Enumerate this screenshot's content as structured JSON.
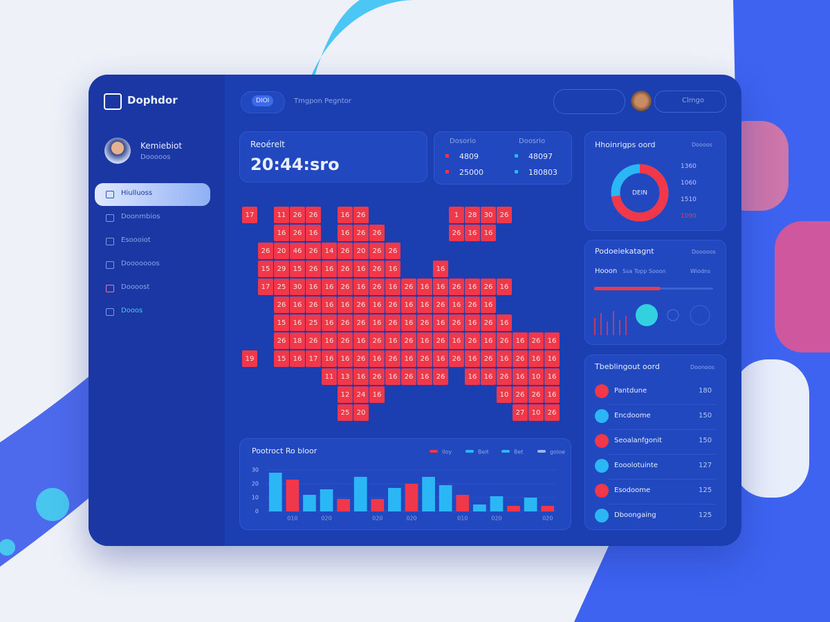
{
  "sidebar": {
    "logo": "Dophdor",
    "user": {
      "name": "Kemiebiot",
      "role": "Dooooos"
    },
    "nav": [
      "Hiulluoss",
      "Doonmbios",
      "Esoooiot",
      "Dooooooos",
      "Doooost",
      "Dooos"
    ]
  },
  "topbar": {
    "badge": "DIOI",
    "title": "Tmgpon Pegntor",
    "user": "Clmgo"
  },
  "clock": {
    "label": "Reoérelt",
    "time": "20:44:sro"
  },
  "stats": {
    "headers": [
      "Dosorio",
      "Doosrio"
    ],
    "rows": [
      [
        "4809",
        "48097"
      ],
      [
        "25000",
        "180803"
      ]
    ]
  },
  "map": {
    "rows": [
      [
        "17",
        null,
        "11",
        "26",
        "26",
        null,
        "16",
        "26",
        null,
        null,
        null,
        null,
        null,
        "1",
        "28",
        "30",
        "26",
        null,
        null,
        null
      ],
      [
        null,
        null,
        "16",
        "26",
        "16",
        null,
        "16",
        "26",
        "26",
        null,
        null,
        null,
        null,
        "26",
        "16",
        "16",
        null,
        null,
        null,
        null
      ],
      [
        null,
        "26",
        "20",
        "46",
        "26",
        "14",
        "26",
        "20",
        "26",
        "26",
        null,
        null,
        null,
        null,
        null,
        null,
        null,
        null,
        null,
        null
      ],
      [
        null,
        "15",
        "29",
        "15",
        "26",
        "16",
        "26",
        "16",
        "26",
        "16",
        null,
        null,
        "16",
        null,
        null,
        null,
        null,
        null,
        null,
        null
      ],
      [
        null,
        "17",
        "25",
        "30",
        "16",
        "16",
        "26",
        "16",
        "26",
        "16",
        "26",
        "16",
        "16",
        "26",
        "16",
        "26",
        "16",
        null,
        null,
        null
      ],
      [
        null,
        null,
        "26",
        "16",
        "26",
        "16",
        "16",
        "26",
        "16",
        "26",
        "16",
        "16",
        "26",
        "16",
        "26",
        "16",
        null,
        null,
        null,
        null
      ],
      [
        null,
        null,
        "15",
        "16",
        "25",
        "16",
        "26",
        "26",
        "16",
        "26",
        "16",
        "26",
        "16",
        "26",
        "16",
        "26",
        "16",
        null,
        null,
        null
      ],
      [
        null,
        null,
        "26",
        "18",
        "26",
        "16",
        "26",
        "16",
        "26",
        "16",
        "26",
        "16",
        "26",
        "16",
        "26",
        "16",
        "26",
        "16",
        "26",
        "16"
      ],
      [
        "19",
        null,
        "15",
        "16",
        "17",
        "16",
        "16",
        "26",
        "16",
        "26",
        "16",
        "26",
        "16",
        "26",
        "16",
        "26",
        "16",
        "26",
        "16",
        "16"
      ],
      [
        null,
        null,
        null,
        null,
        null,
        "11",
        "13",
        "16",
        "26",
        "16",
        "26",
        "16",
        "26",
        null,
        "16",
        "16",
        "26",
        "16",
        "10",
        "16"
      ],
      [
        null,
        null,
        null,
        null,
        null,
        null,
        "12",
        "24",
        "16",
        null,
        null,
        null,
        null,
        null,
        null,
        null,
        "10",
        "26",
        "26",
        "16"
      ],
      [
        null,
        null,
        null,
        null,
        null,
        null,
        "25",
        "20",
        null,
        null,
        null,
        null,
        null,
        null,
        null,
        null,
        null,
        "27",
        "10",
        "26"
      ]
    ]
  },
  "bar_chart": {
    "title": "Pootroct Ro bloor",
    "legend": [
      {
        "name": "lloy",
        "color": "#f0384a"
      },
      {
        "name": "Beit",
        "color": "#2bb6f5"
      },
      {
        "name": "Bet",
        "color": "#2bb6f5"
      },
      {
        "name": "goloe",
        "color": "#9fb4ee"
      }
    ],
    "ylim": [
      0,
      35
    ],
    "yticks": [
      0,
      10,
      20,
      30
    ],
    "categories": [
      null,
      "010",
      null,
      "020",
      null,
      null,
      "020",
      null,
      "020",
      null,
      null,
      "010",
      null,
      "020",
      null,
      null,
      "020"
    ],
    "values": [
      28,
      23,
      12,
      16,
      9,
      25,
      9,
      17,
      20,
      25,
      19,
      12,
      5,
      11,
      4,
      10,
      4
    ],
    "colors": [
      "#2bb6f5",
      "#f0384a",
      "#2bb6f5",
      "#2bb6f5",
      "#f0384a",
      "#2bb6f5",
      "#f0384a",
      "#2bb6f5",
      "#f0384a",
      "#2bb6f5",
      "#2bb6f5",
      "#f0384a",
      "#2bb6f5",
      "#2bb6f5",
      "#f0384a",
      "#2bb6f5",
      "#f0384a"
    ]
  },
  "donut_card": {
    "title": "Hhoinrigps oord",
    "subtitle": "Doooos",
    "center": "DEIN",
    "legend": [
      "1360",
      "1060",
      "1510",
      "1090"
    ]
  },
  "progress_card": {
    "title": "Podoeiekatagnt",
    "subtitle": "Dooooos",
    "label": "Hooon",
    "detail": "Ssa Topp Sooon",
    "value": "Wiodns"
  },
  "list_card": {
    "title": "Tbeblingout oord",
    "subtitle": "Doonoos",
    "items": [
      {
        "name": "Pantdune",
        "value": "180"
      },
      {
        "name": "Encdoome",
        "value": "150"
      },
      {
        "name": "Seoalanfgonit",
        "value": "150"
      },
      {
        "name": "Eooolotuinte",
        "value": "127"
      },
      {
        "name": "Esodoome",
        "value": "125"
      },
      {
        "name": "Dboongaing",
        "value": "125"
      }
    ]
  }
}
